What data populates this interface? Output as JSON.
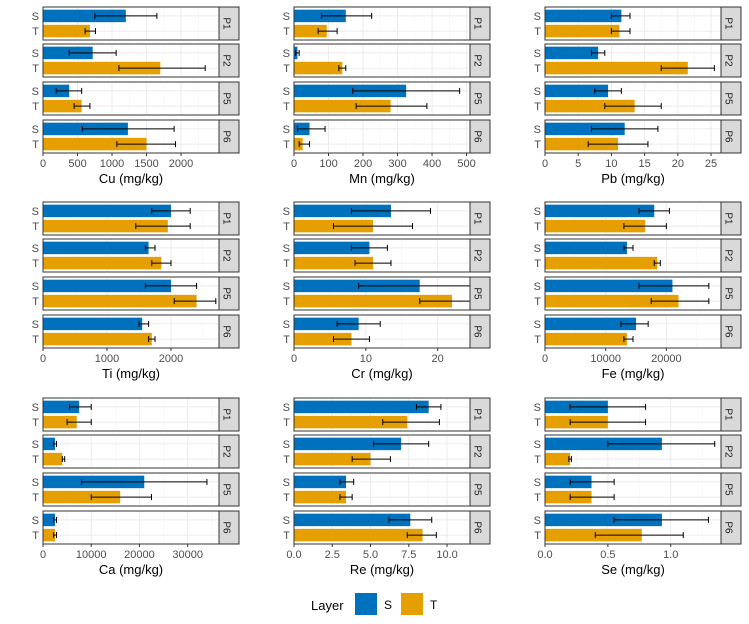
{
  "legend": {
    "title": "Layer",
    "items": [
      {
        "key": "S",
        "label": "S",
        "color": "#0072BD"
      },
      {
        "key": "T",
        "label": "T",
        "color": "#E69F00"
      }
    ]
  },
  "chart_data": [
    {
      "type": "bar",
      "orientation": "horizontal",
      "xlabel": "Cu (mg/kg)",
      "xlim": [
        0,
        2550
      ],
      "xticks": [
        0,
        500,
        1000,
        1500,
        2000
      ],
      "facets": [
        {
          "label": "P1",
          "S": {
            "value": 1200,
            "low": 750,
            "high": 1650
          },
          "T": {
            "value": 680,
            "low": 610,
            "high": 760
          }
        },
        {
          "label": "P2",
          "S": {
            "value": 720,
            "low": 380,
            "high": 1060
          },
          "T": {
            "value": 1700,
            "low": 1100,
            "high": 2350
          }
        },
        {
          "label": "P5",
          "S": {
            "value": 380,
            "low": 190,
            "high": 560
          },
          "T": {
            "value": 560,
            "low": 450,
            "high": 680
          }
        },
        {
          "label": "P6",
          "S": {
            "value": 1230,
            "low": 570,
            "high": 1900
          },
          "T": {
            "value": 1500,
            "low": 1070,
            "high": 1920
          }
        }
      ]
    },
    {
      "type": "bar",
      "orientation": "horizontal",
      "xlabel": "Mn (mg/kg)",
      "xlim": [
        0,
        510
      ],
      "xticks": [
        0,
        100,
        200,
        300,
        400,
        500
      ],
      "facets": [
        {
          "label": "P1",
          "S": {
            "value": 150,
            "low": 80,
            "high": 225
          },
          "T": {
            "value": 95,
            "low": 70,
            "high": 125
          }
        },
        {
          "label": "P2",
          "S": {
            "value": 10,
            "low": 5,
            "high": 15
          },
          "T": {
            "value": 140,
            "low": 130,
            "high": 150
          }
        },
        {
          "label": "P5",
          "S": {
            "value": 325,
            "low": 170,
            "high": 480
          },
          "T": {
            "value": 280,
            "low": 180,
            "high": 385
          }
        },
        {
          "label": "P6",
          "S": {
            "value": 45,
            "low": 10,
            "high": 90
          },
          "T": {
            "value": 25,
            "low": 15,
            "high": 45
          }
        }
      ]
    },
    {
      "type": "bar",
      "orientation": "horizontal",
      "xlabel": "Pb (mg/kg)",
      "xlim": [
        0,
        26.5
      ],
      "xticks": [
        0,
        5,
        10,
        15,
        20,
        25
      ],
      "facets": [
        {
          "label": "P1",
          "S": {
            "value": 11.5,
            "low": 10.0,
            "high": 12.8
          },
          "T": {
            "value": 11.2,
            "low": 10.0,
            "high": 12.8
          }
        },
        {
          "label": "P2",
          "S": {
            "value": 8.0,
            "low": 7.0,
            "high": 9.0
          },
          "T": {
            "value": 21.5,
            "low": 17.5,
            "high": 25.5
          }
        },
        {
          "label": "P5",
          "S": {
            "value": 9.5,
            "low": 7.5,
            "high": 11.5
          },
          "T": {
            "value": 13.5,
            "low": 9.0,
            "high": 17.5
          }
        },
        {
          "label": "P6",
          "S": {
            "value": 12.0,
            "low": 7.0,
            "high": 17.0
          },
          "T": {
            "value": 11.0,
            "low": 6.5,
            "high": 15.5
          }
        }
      ]
    },
    {
      "type": "bar",
      "orientation": "horizontal",
      "xlabel": "Ti (mg/kg)",
      "xlim": [
        0,
        2750
      ],
      "xticks": [
        0,
        1000,
        2000
      ],
      "facets": [
        {
          "label": "P1",
          "S": {
            "value": 2000,
            "low": 1700,
            "high": 2300
          },
          "T": {
            "value": 1950,
            "low": 1450,
            "high": 2300
          }
        },
        {
          "label": "P2",
          "S": {
            "value": 1650,
            "low": 1600,
            "high": 1750
          },
          "T": {
            "value": 1850,
            "low": 1700,
            "high": 2000
          }
        },
        {
          "label": "P5",
          "S": {
            "value": 2000,
            "low": 1600,
            "high": 2400
          },
          "T": {
            "value": 2400,
            "low": 2050,
            "high": 2700
          }
        },
        {
          "label": "P6",
          "S": {
            "value": 1550,
            "low": 1500,
            "high": 1650
          },
          "T": {
            "value": 1700,
            "low": 1650,
            "high": 1750
          }
        }
      ]
    },
    {
      "type": "bar",
      "orientation": "horizontal",
      "xlabel": "Cr (mg/kg)",
      "xlim": [
        0,
        24.5
      ],
      "xticks": [
        0,
        10,
        20
      ],
      "facets": [
        {
          "label": "P1",
          "S": {
            "value": 13.5,
            "low": 8.0,
            "high": 19.0
          },
          "T": {
            "value": 11.0,
            "low": 5.5,
            "high": 16.5
          }
        },
        {
          "label": "P2",
          "S": {
            "value": 10.5,
            "low": 8.0,
            "high": 13.0
          },
          "T": {
            "value": 11.0,
            "low": 8.5,
            "high": 13.5
          }
        },
        {
          "label": "P5",
          "S": {
            "value": 17.5,
            "low": 9.0,
            "high": 26.0
          },
          "T": {
            "value": 22.0,
            "low": 17.5,
            "high": 26.5
          }
        },
        {
          "label": "P6",
          "S": {
            "value": 9.0,
            "low": 6.0,
            "high": 12.0
          },
          "T": {
            "value": 8.0,
            "low": 5.5,
            "high": 10.5
          }
        }
      ]
    },
    {
      "type": "bar",
      "orientation": "horizontal",
      "xlabel": "Fe (mg/kg)",
      "xlim": [
        0,
        29000
      ],
      "xticks": [
        0,
        10000,
        20000
      ],
      "facets": [
        {
          "label": "P1",
          "S": {
            "value": 18000,
            "low": 15500,
            "high": 20500
          },
          "T": {
            "value": 16500,
            "low": 13000,
            "high": 20000
          }
        },
        {
          "label": "P2",
          "S": {
            "value": 13500,
            "low": 13000,
            "high": 14500
          },
          "T": {
            "value": 18500,
            "low": 18000,
            "high": 19000
          }
        },
        {
          "label": "P5",
          "S": {
            "value": 21000,
            "low": 15500,
            "high": 27000
          },
          "T": {
            "value": 22000,
            "low": 17500,
            "high": 27000
          }
        },
        {
          "label": "P6",
          "S": {
            "value": 15000,
            "low": 12500,
            "high": 17000
          },
          "T": {
            "value": 13500,
            "low": 13000,
            "high": 14500
          }
        }
      ]
    },
    {
      "type": "bar",
      "orientation": "horizontal",
      "xlabel": "Ca (mg/kg)",
      "xlim": [
        0,
        36500
      ],
      "xticks": [
        0,
        10000,
        20000,
        30000
      ],
      "facets": [
        {
          "label": "P1",
          "S": {
            "value": 7500,
            "low": 5500,
            "high": 10000
          },
          "T": {
            "value": 7000,
            "low": 5000,
            "high": 10000
          }
        },
        {
          "label": "P2",
          "S": {
            "value": 2500,
            "low": 2200,
            "high": 2800
          },
          "T": {
            "value": 4000,
            "low": 4000,
            "high": 4500
          }
        },
        {
          "label": "P5",
          "S": {
            "value": 21000,
            "low": 8000,
            "high": 34000
          },
          "T": {
            "value": 16000,
            "low": 10000,
            "high": 22500
          }
        },
        {
          "label": "P6",
          "S": {
            "value": 2500,
            "low": 2200,
            "high": 2800
          },
          "T": {
            "value": 2500,
            "low": 2200,
            "high": 2800
          }
        }
      ]
    },
    {
      "type": "bar",
      "orientation": "horizontal",
      "xlabel": "Re (mg/kg)",
      "xlim": [
        0,
        11.5
      ],
      "xticks": [
        0.0,
        2.5,
        5.0,
        7.5,
        10.0
      ],
      "tick_decimals": 1,
      "facets": [
        {
          "label": "P1",
          "S": {
            "value": 8.8,
            "low": 8.0,
            "high": 9.6
          },
          "T": {
            "value": 7.4,
            "low": 5.8,
            "high": 9.5
          }
        },
        {
          "label": "P2",
          "S": {
            "value": 7.0,
            "low": 5.2,
            "high": 8.8
          },
          "T": {
            "value": 5.0,
            "low": 3.8,
            "high": 6.3
          }
        },
        {
          "label": "P5",
          "S": {
            "value": 3.4,
            "low": 3.0,
            "high": 3.9
          },
          "T": {
            "value": 3.4,
            "low": 3.0,
            "high": 3.8
          }
        },
        {
          "label": "P6",
          "S": {
            "value": 7.6,
            "low": 6.2,
            "high": 9.0
          },
          "T": {
            "value": 8.4,
            "low": 7.4,
            "high": 9.3
          }
        }
      ]
    },
    {
      "type": "bar",
      "orientation": "horizontal",
      "xlabel": "Se (mg/kg)",
      "xlim": [
        0,
        1.4
      ],
      "xticks": [
        0.0,
        0.5,
        1.0
      ],
      "tick_decimals": 1,
      "facets": [
        {
          "label": "P1",
          "S": {
            "value": 0.5,
            "low": 0.2,
            "high": 0.8
          },
          "T": {
            "value": 0.5,
            "low": 0.2,
            "high": 0.8
          }
        },
        {
          "label": "P2",
          "S": {
            "value": 0.93,
            "low": 0.5,
            "high": 1.35
          },
          "T": {
            "value": 0.2,
            "low": 0.19,
            "high": 0.21
          }
        },
        {
          "label": "P5",
          "S": {
            "value": 0.37,
            "low": 0.2,
            "high": 0.55
          },
          "T": {
            "value": 0.37,
            "low": 0.2,
            "high": 0.55
          }
        },
        {
          "label": "P6",
          "S": {
            "value": 0.93,
            "low": 0.55,
            "high": 1.3
          },
          "T": {
            "value": 0.77,
            "low": 0.4,
            "high": 1.1
          }
        }
      ]
    }
  ]
}
